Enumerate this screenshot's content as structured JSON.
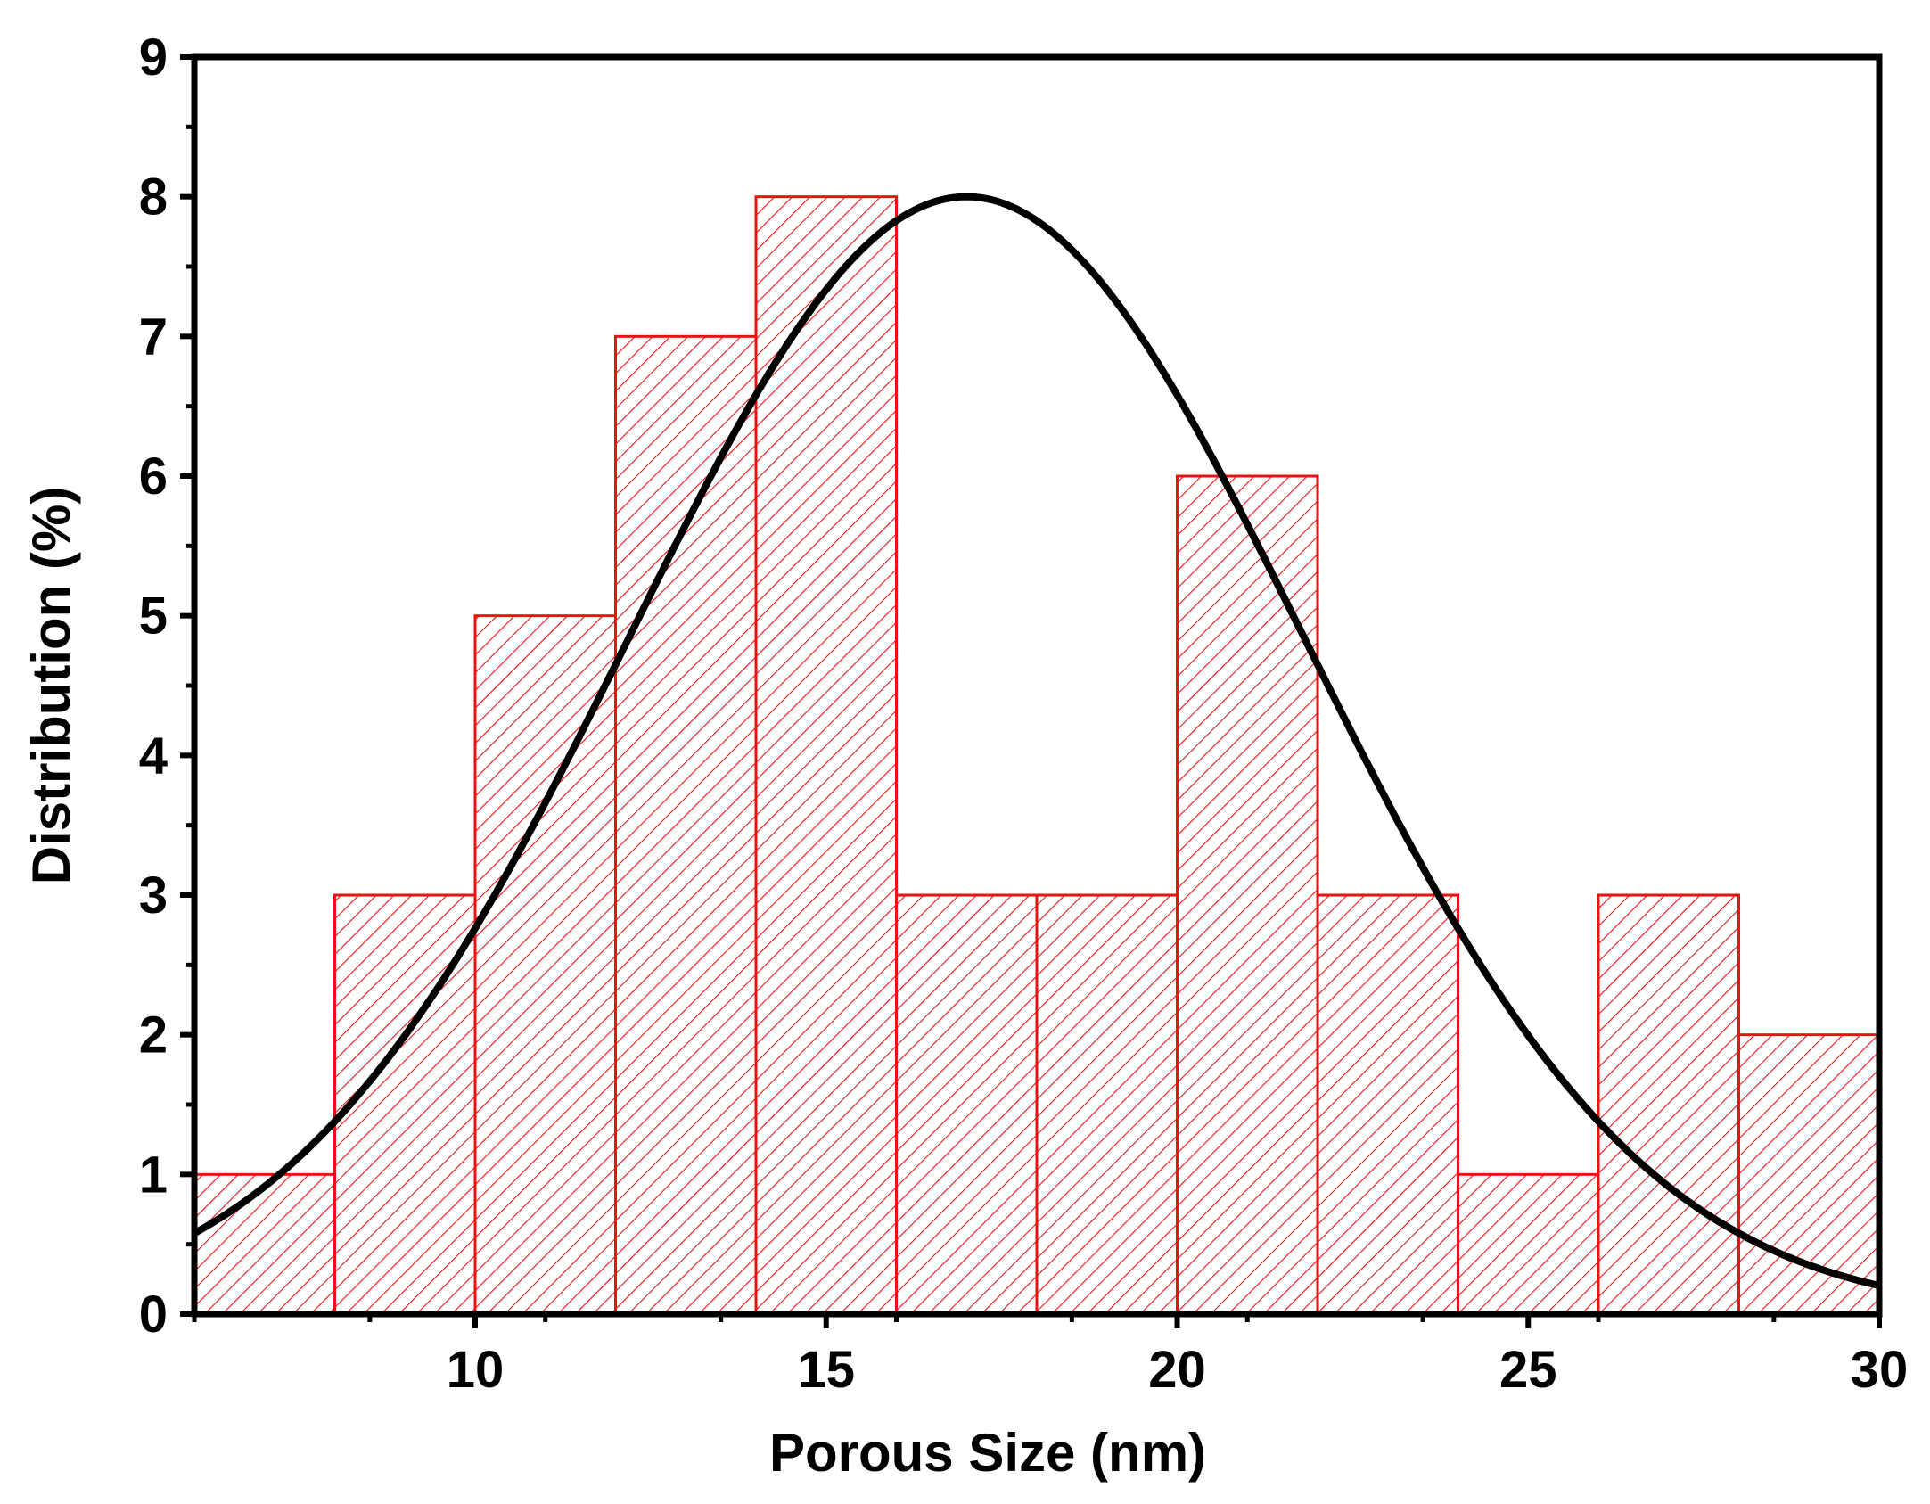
{
  "chart_data": {
    "type": "bar",
    "title": "",
    "xlabel": "Porous Size (nm)",
    "ylabel": "Distribution (%)",
    "xlim": [
      6,
      30
    ],
    "ylim": [
      0,
      9
    ],
    "x_ticks": [
      10,
      15,
      20,
      25,
      30
    ],
    "y_ticks": [
      0,
      1,
      2,
      3,
      4,
      5,
      6,
      7,
      8,
      9
    ],
    "bin_edges": [
      6,
      8,
      10,
      12,
      14,
      16,
      18,
      20,
      22,
      24,
      26,
      28,
      30
    ],
    "values": [
      1,
      3,
      5,
      7,
      8,
      3,
      3,
      6,
      3,
      1,
      3,
      2
    ],
    "bar_style": "red outlined bars with diagonal hatching",
    "bar_color": "#ee1111",
    "fit": {
      "type": "gaussian",
      "name": "fit curve",
      "amplitude": 8.0,
      "center": 17.0,
      "sigma": 4.8,
      "color": "#000000"
    },
    "grid": false,
    "legend": "none"
  }
}
